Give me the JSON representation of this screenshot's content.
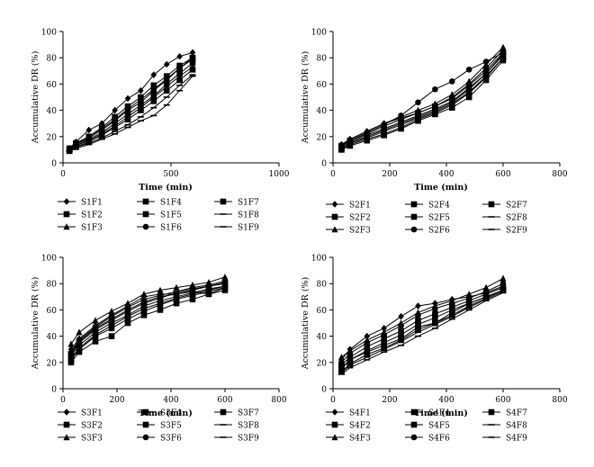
{
  "chart_data": [
    {
      "type": "line",
      "xlabel": "Time (min)",
      "ylabel": "Accumulative DR (%)",
      "xlim": [
        0,
        1000
      ],
      "ylim": [
        0,
        100
      ],
      "xticks": [
        "0",
        "500",
        "1000"
      ],
      "yticks": [
        "0",
        "20",
        "40",
        "60",
        "80",
        "100"
      ],
      "x": [
        30,
        60,
        120,
        180,
        240,
        300,
        360,
        420,
        480,
        540,
        600
      ],
      "series": [
        {
          "name": "S1F1",
          "marker": "diamond",
          "values": [
            11,
            16,
            25,
            30,
            40,
            49,
            55,
            67,
            75,
            81,
            84
          ]
        },
        {
          "name": "S1F2",
          "marker": "square",
          "values": [
            10,
            14,
            19,
            25,
            32,
            40,
            46,
            55,
            63,
            72,
            80
          ]
        },
        {
          "name": "S1F3",
          "marker": "triangle",
          "values": [
            10,
            13,
            17,
            22,
            28,
            35,
            42,
            50,
            58,
            66,
            73
          ]
        },
        {
          "name": "S1F4",
          "marker": "square",
          "values": [
            11,
            15,
            20,
            27,
            35,
            43,
            50,
            59,
            66,
            74,
            80
          ]
        },
        {
          "name": "S1F5",
          "marker": "square",
          "values": [
            10,
            13,
            18,
            23,
            30,
            37,
            44,
            51,
            60,
            68,
            76
          ]
        },
        {
          "name": "S1F6",
          "marker": "circle",
          "values": [
            11,
            14,
            20,
            26,
            33,
            41,
            48,
            56,
            64,
            72,
            79
          ]
        },
        {
          "name": "S1F7",
          "marker": "square",
          "values": [
            9,
            12,
            16,
            21,
            27,
            33,
            40,
            47,
            55,
            63,
            71
          ]
        },
        {
          "name": "S1F8",
          "marker": "dash",
          "values": [
            9,
            12,
            15,
            19,
            24,
            29,
            35,
            42,
            50,
            59,
            67
          ]
        },
        {
          "name": "S1F9",
          "marker": "dash",
          "values": [
            9,
            11,
            14,
            18,
            22,
            27,
            32,
            36,
            44,
            55,
            66
          ]
        }
      ]
    },
    {
      "type": "line",
      "xlabel": "Time (min)",
      "ylabel": "Accumulative DR (%)",
      "xlim": [
        0,
        800
      ],
      "ylim": [
        0,
        100
      ],
      "xticks": [
        "0",
        "200",
        "400",
        "600",
        "800"
      ],
      "yticks": [
        "0",
        "20",
        "40",
        "60",
        "80",
        "100"
      ],
      "x": [
        30,
        60,
        120,
        180,
        240,
        300,
        360,
        420,
        480,
        540,
        600
      ],
      "series": [
        {
          "name": "S2F1",
          "marker": "diamond",
          "values": [
            14,
            18,
            24,
            30,
            34,
            38,
            43,
            50,
            60,
            72,
            86
          ]
        },
        {
          "name": "S2F2",
          "marker": "square",
          "values": [
            12,
            16,
            21,
            26,
            31,
            36,
            41,
            47,
            57,
            68,
            82
          ]
        },
        {
          "name": "S2F3",
          "marker": "triangle",
          "values": [
            13,
            18,
            24,
            30,
            35,
            40,
            45,
            52,
            62,
            75,
            88
          ]
        },
        {
          "name": "S2F4",
          "marker": "square",
          "values": [
            13,
            17,
            22,
            28,
            33,
            38,
            43,
            49,
            59,
            70,
            84
          ]
        },
        {
          "name": "S2F5",
          "marker": "square",
          "values": [
            11,
            15,
            19,
            24,
            29,
            34,
            39,
            45,
            54,
            66,
            80
          ]
        },
        {
          "name": "S2F6",
          "marker": "circle",
          "values": [
            13,
            17,
            23,
            29,
            36,
            46,
            56,
            62,
            71,
            77,
            84
          ]
        },
        {
          "name": "S2F7",
          "marker": "square",
          "values": [
            10,
            13,
            17,
            21,
            26,
            32,
            37,
            42,
            50,
            63,
            78
          ]
        },
        {
          "name": "S2F8",
          "marker": "dash",
          "values": [
            10,
            14,
            18,
            22,
            27,
            33,
            38,
            44,
            53,
            65,
            80
          ]
        },
        {
          "name": "S2F9",
          "marker": "dash",
          "values": [
            11,
            15,
            20,
            25,
            30,
            35,
            40,
            46,
            56,
            68,
            83
          ]
        }
      ]
    },
    {
      "type": "line",
      "xlabel": "Time (min)",
      "ylabel": "Accumulative DR (%)",
      "xlim": [
        0,
        800
      ],
      "ylim": [
        0,
        100
      ],
      "xticks": [
        "0",
        "200",
        "400",
        "600",
        "800"
      ],
      "yticks": [
        "0",
        "20",
        "40",
        "60",
        "80",
        "100"
      ],
      "x": [
        30,
        60,
        120,
        180,
        240,
        300,
        360,
        420,
        480,
        540,
        600
      ],
      "series": [
        {
          "name": "S3F1",
          "marker": "diamond",
          "values": [
            30,
            38,
            48,
            56,
            63,
            70,
            72,
            72,
            74,
            72,
            77
          ]
        },
        {
          "name": "S3F2",
          "marker": "square",
          "values": [
            20,
            28,
            36,
            40,
            50,
            56,
            60,
            65,
            68,
            72,
            75
          ]
        },
        {
          "name": "S3F3",
          "marker": "triangle",
          "values": [
            34,
            43,
            52,
            59,
            65,
            72,
            75,
            77,
            79,
            81,
            85
          ]
        },
        {
          "name": "S3F4",
          "marker": "square",
          "values": [
            25,
            33,
            43,
            50,
            56,
            63,
            67,
            70,
            73,
            76,
            78
          ]
        },
        {
          "name": "S3F5",
          "marker": "square",
          "values": [
            22,
            30,
            40,
            46,
            53,
            59,
            64,
            68,
            71,
            74,
            77
          ]
        },
        {
          "name": "S3F6",
          "marker": "circle",
          "values": [
            27,
            36,
            46,
            53,
            60,
            66,
            70,
            72,
            75,
            78,
            81
          ]
        },
        {
          "name": "S3F7",
          "marker": "square",
          "values": [
            23,
            31,
            41,
            48,
            55,
            61,
            65,
            69,
            72,
            75,
            78
          ]
        },
        {
          "name": "S3F8",
          "marker": "dash",
          "values": [
            28,
            37,
            47,
            55,
            62,
            68,
            71,
            74,
            77,
            79,
            82
          ]
        },
        {
          "name": "S3F9",
          "marker": "dash",
          "values": [
            26,
            35,
            45,
            52,
            59,
            65,
            69,
            73,
            76,
            78,
            80
          ]
        }
      ]
    },
    {
      "type": "line",
      "xlabel": "Time (min)",
      "ylabel": "Accumulative DR (%)",
      "xlim": [
        0,
        800
      ],
      "ylim": [
        0,
        100
      ],
      "xticks": [
        "0",
        "200",
        "400",
        "600",
        "800"
      ],
      "yticks": [
        "0",
        "20",
        "40",
        "60",
        "80",
        "100"
      ],
      "x": [
        30,
        60,
        120,
        180,
        240,
        300,
        360,
        420,
        480,
        540,
        600
      ],
      "series": [
        {
          "name": "S4F1",
          "marker": "diamond",
          "values": [
            22,
            30,
            40,
            46,
            55,
            63,
            65,
            68,
            70,
            73,
            78
          ]
        },
        {
          "name": "S4F2",
          "marker": "square",
          "values": [
            15,
            22,
            28,
            33,
            38,
            47,
            50,
            58,
            65,
            70,
            75
          ]
        },
        {
          "name": "S4F3",
          "marker": "triangle",
          "values": [
            24,
            29,
            37,
            43,
            50,
            58,
            63,
            67,
            72,
            77,
            84
          ]
        },
        {
          "name": "S4F4",
          "marker": "square",
          "values": [
            18,
            24,
            32,
            38,
            44,
            52,
            57,
            62,
            67,
            72,
            77
          ]
        },
        {
          "name": "S4F5",
          "marker": "square",
          "values": [
            16,
            22,
            29,
            35,
            41,
            49,
            54,
            60,
            65,
            70,
            75
          ]
        },
        {
          "name": "S4F6",
          "marker": "circle",
          "values": [
            20,
            27,
            35,
            41,
            48,
            56,
            61,
            65,
            69,
            74,
            80
          ]
        },
        {
          "name": "S4F7",
          "marker": "square",
          "values": [
            13,
            19,
            26,
            31,
            37,
            45,
            50,
            56,
            63,
            69,
            75
          ]
        },
        {
          "name": "S4F8",
          "marker": "dash",
          "values": [
            12,
            18,
            24,
            30,
            36,
            43,
            49,
            55,
            62,
            68,
            74
          ]
        },
        {
          "name": "S4F9",
          "marker": "dash",
          "values": [
            11,
            16,
            22,
            28,
            33,
            40,
            46,
            53,
            60,
            67,
            73
          ]
        }
      ]
    }
  ]
}
